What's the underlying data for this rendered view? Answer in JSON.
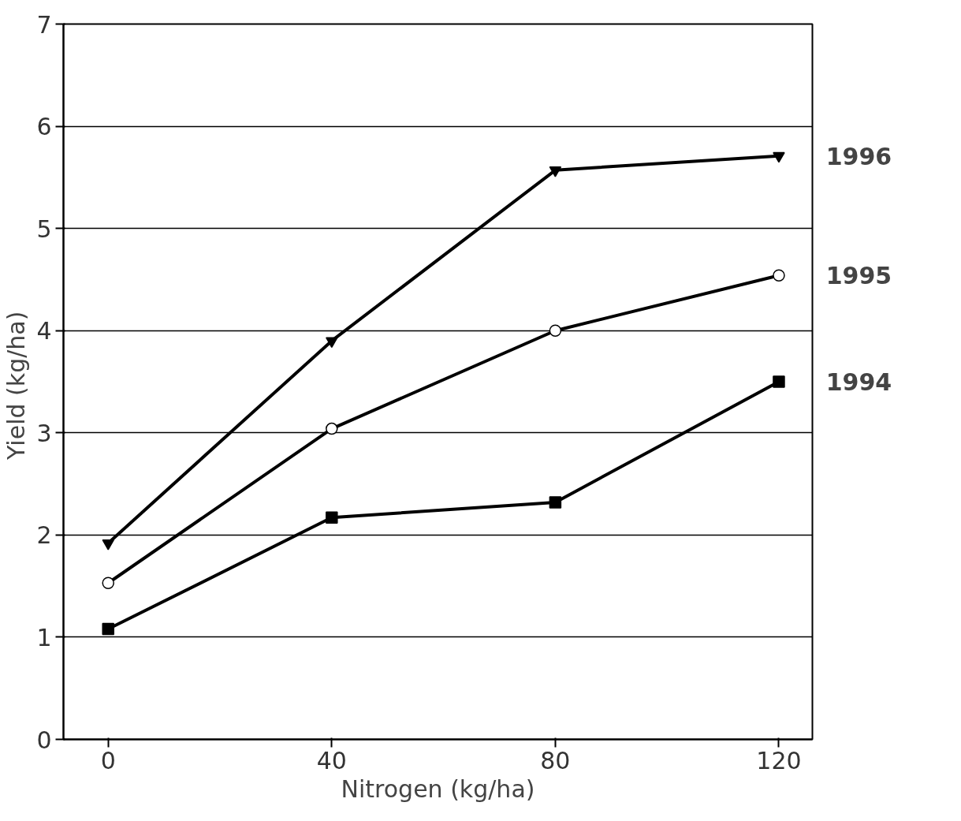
{
  "chart_data": {
    "type": "line",
    "xlabel": "Nitrogen (kg/ha)",
    "ylabel": "Yield  (kg/ha)",
    "x": [
      0,
      40,
      80,
      120
    ],
    "series": [
      {
        "name": "1996",
        "color": "#000000",
        "marker": "triangle",
        "values": [
          1.92,
          3.9,
          5.57,
          5.71
        ]
      },
      {
        "name": "1995",
        "color": "#000000",
        "marker": "circle",
        "values": [
          1.53,
          3.04,
          4.0,
          4.54
        ]
      },
      {
        "name": "1994",
        "color": "#000000",
        "marker": "square",
        "values": [
          1.08,
          2.17,
          2.32,
          3.5
        ]
      }
    ],
    "xlim": [
      -8,
      126
    ],
    "ylim": [
      0,
      7
    ],
    "xticks": [
      0,
      40,
      80,
      120
    ],
    "yticks": [
      0,
      1,
      2,
      3,
      4,
      5,
      6,
      7
    ],
    "grid": "y",
    "line_style": "solid"
  }
}
